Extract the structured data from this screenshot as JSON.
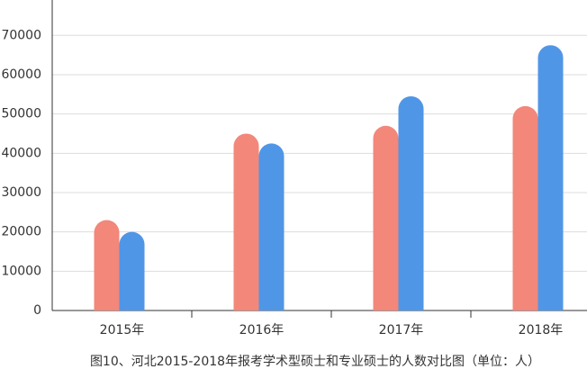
{
  "chart_data": {
    "type": "bar",
    "title": "图10、河北2015-2018年报考学术型硕士和专业硕士的人数对比图（单位：人）",
    "categories": [
      "2015年",
      "2016年",
      "2017年",
      "2018年"
    ],
    "series": [
      {
        "color": "#f2877a",
        "values": [
          23000,
          45000,
          47000,
          52000
        ]
      },
      {
        "color": "#5096e6",
        "values": [
          20000,
          42500,
          54500,
          67500
        ]
      }
    ],
    "ylim": [
      0,
      79000
    ],
    "yticks": [
      0,
      10000,
      20000,
      30000,
      40000,
      50000,
      60000,
      70000
    ],
    "grid": true
  }
}
